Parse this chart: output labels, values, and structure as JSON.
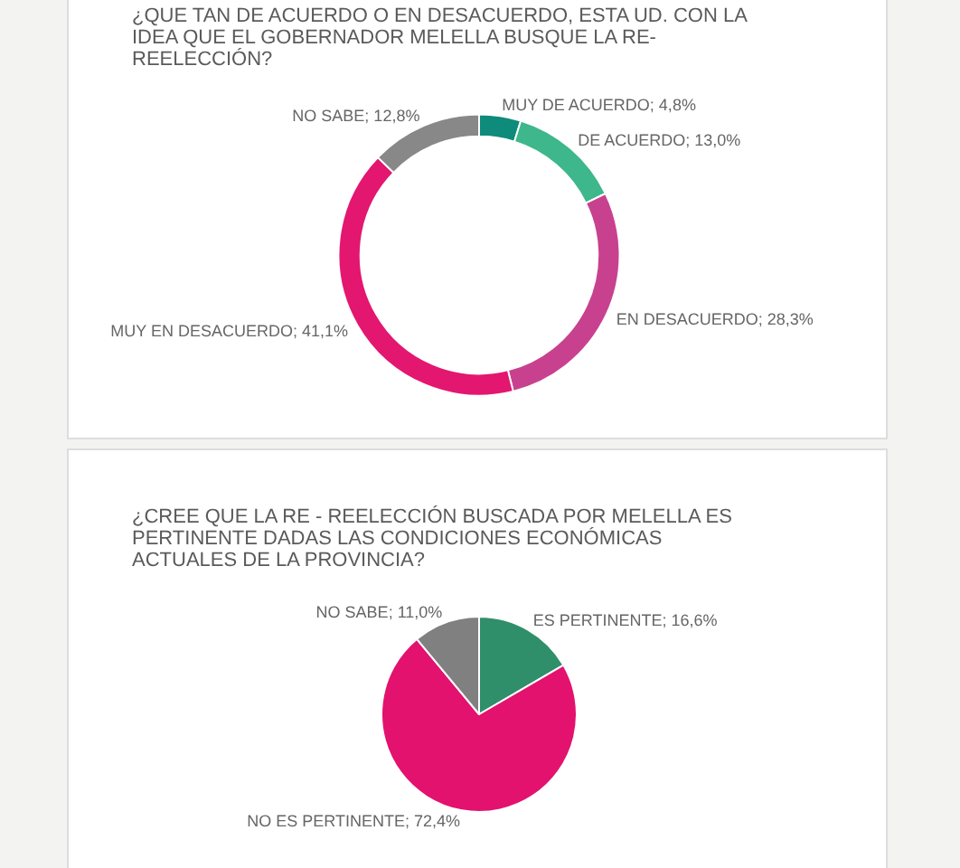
{
  "chart_data": [
    {
      "type": "donut",
      "title": "¿QUE TAN DE ACUERDO O EN DESACUERDO, ESTA UD. CON LA IDEA QUE EL GOBERNADOR MELELLA BUSQUE LA RE-REELECCIÓN?",
      "categories": [
        "MUY DE ACUERDO",
        "DE ACUERDO",
        "EN DESACUERDO",
        "MUY EN DESACUERDO",
        "NO SABE"
      ],
      "values": [
        4.8,
        13.0,
        28.3,
        41.1,
        12.8
      ],
      "value_labels": [
        "4,8%",
        "13,0%",
        "28,3%",
        "41,1%",
        "12,8%"
      ],
      "colors": [
        "#0f8b7b",
        "#3db78b",
        "#c8418f",
        "#e3176f",
        "#888888"
      ]
    },
    {
      "type": "pie",
      "title": "¿CREE QUE LA RE - REELECCIÓN BUSCADA POR MELELLA ES PERTINENTE DADAS LAS CONDICIONES ECONÓMICAS ACTUALES DE LA PROVINCIA?",
      "categories": [
        "ES PERTINENTE",
        "NO ES PERTINENTE",
        "NO SABE"
      ],
      "values": [
        16.6,
        72.4,
        11.0
      ],
      "value_labels": [
        "16,6%",
        "72,4%",
        "11,0%"
      ],
      "colors": [
        "#2f8f6a",
        "#e3126e",
        "#808080"
      ]
    }
  ]
}
